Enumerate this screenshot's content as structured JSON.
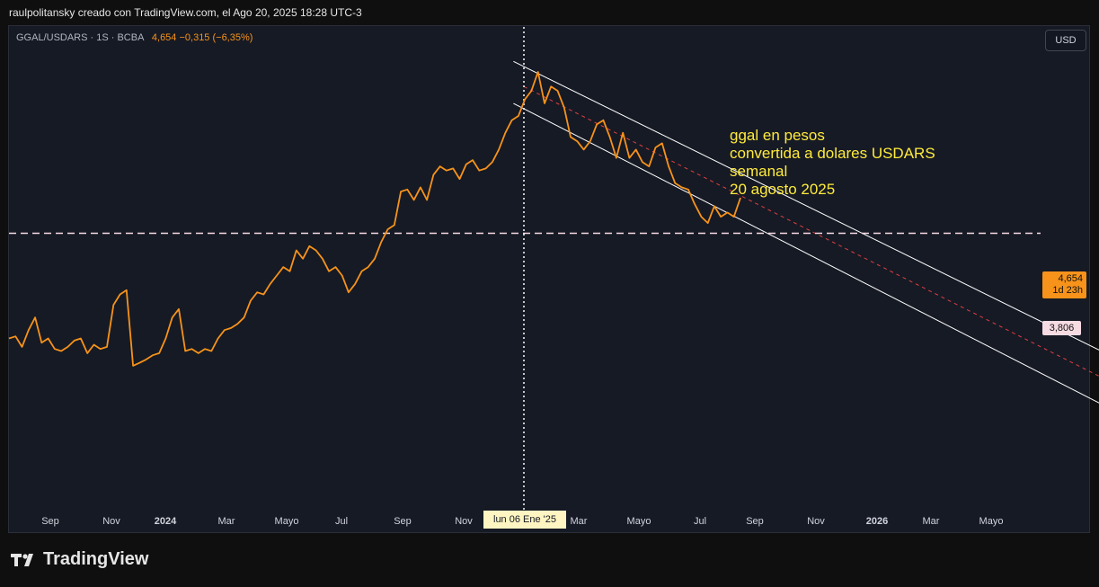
{
  "header": {
    "credit": "raulpolitansky creado con TradingView.com, el Ago 20, 2025 18:28 UTC-3"
  },
  "legend": {
    "symbol": "GGAL/USDARS · 1S · BCBA",
    "values": "4,654 −0,315 (−6,35%)"
  },
  "currency_button": "USD",
  "annotation": [
    "ggal en pesos",
    "convertida a dolares USDARS",
    "semanal",
    "20 agosto 2025"
  ],
  "price_label": {
    "price": "4,654",
    "countdown": "1d 23h"
  },
  "level_label": "3,806",
  "crosshair_date": "lun 06 Ene '25",
  "footer": {
    "brand": "TradingView"
  },
  "colors": {
    "series": "#f7931a",
    "channel": "#ffffff",
    "midline": "#e04040",
    "level": "#f7dbe3",
    "annotation": "#ffeb3b",
    "background": "#161a25"
  },
  "chart_data": {
    "type": "line",
    "x_ticks": [
      "Sep",
      "Nov",
      "2024",
      "Mar",
      "Mayo",
      "Jul",
      "Sep",
      "Nov",
      "Mar",
      "Mayo",
      "Jul",
      "Sep",
      "Nov",
      "2026",
      "Mar",
      "Mayo"
    ],
    "series": [
      {
        "values": [
          1.3,
          1.35,
          1.1,
          1.5,
          1.8,
          1.2,
          1.3,
          1.05,
          1.0,
          1.1,
          1.25,
          1.3,
          0.95,
          1.15,
          1.05,
          1.1,
          2.1,
          2.35,
          2.45,
          0.65,
          0.72,
          0.8,
          0.9,
          0.95,
          1.3,
          1.8,
          2.0,
          1.0,
          1.05,
          0.95,
          1.05,
          1.0,
          1.3,
          1.5,
          1.55,
          1.65,
          1.8,
          2.2,
          2.4,
          2.35,
          2.6,
          2.8,
          3.0,
          2.9,
          3.4,
          3.2,
          3.5,
          3.4,
          3.2,
          2.9,
          3.0,
          2.8,
          2.4,
          2.6,
          2.9,
          3.0,
          3.2,
          3.6,
          3.9,
          4.0,
          4.8,
          4.85,
          4.6,
          4.9,
          4.6,
          5.2,
          5.4,
          5.3,
          5.35,
          5.1,
          5.45,
          5.55,
          5.3,
          5.35,
          5.5,
          5.8,
          6.2,
          6.5,
          6.6,
          7.0,
          7.2,
          7.65,
          6.9,
          7.3,
          7.2,
          6.8,
          6.1,
          6.0,
          5.8,
          6.0,
          6.4,
          6.5,
          6.1,
          5.6,
          6.2,
          5.6,
          5.8,
          5.5,
          5.4,
          5.85,
          5.95,
          5.4,
          5.0,
          4.9,
          4.85,
          4.5,
          4.2,
          4.05,
          4.45,
          4.2,
          4.3,
          4.2,
          4.65
        ]
      }
    ],
    "channel_upper": {
      "from": [
        "2024-12-30",
        7.9
      ],
      "to": [
        "2026-06-15",
        -1.4
      ]
    },
    "channel_lower": {
      "from": [
        "2024-12-30",
        6.9
      ],
      "to": [
        "2026-06-01",
        -2.5
      ]
    },
    "channel_mid": {
      "from": [
        "2025-01-06",
        7.3
      ],
      "to": [
        "2026-06-08",
        -1.95
      ]
    },
    "level": 3.806,
    "current_price": 4.654,
    "vertical_line_date": "lun 06 Ene '25",
    "grid": false
  }
}
